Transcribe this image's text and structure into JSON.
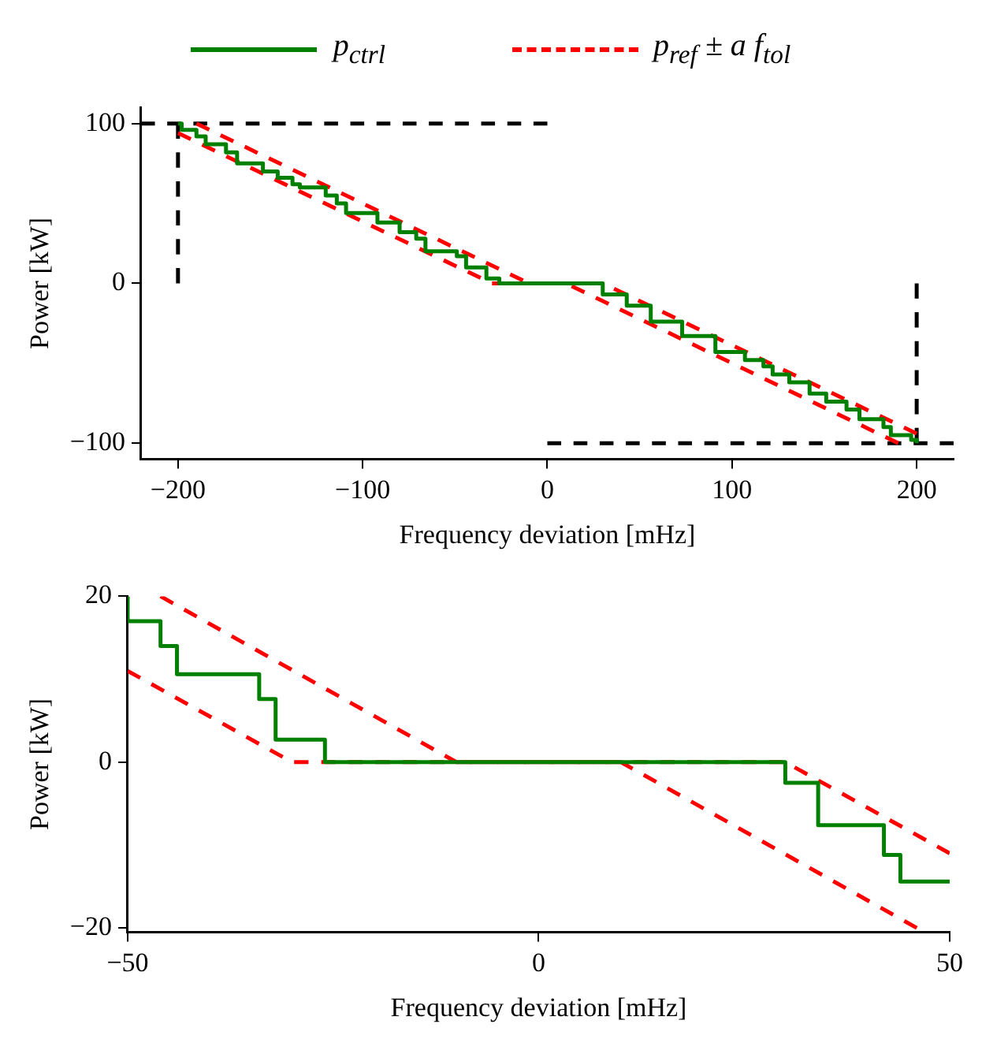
{
  "chart_data": [
    {
      "type": "line",
      "xlabel": "Frequency deviation [mHz]",
      "ylabel": "Power [kW]",
      "xlim": [
        -220,
        220
      ],
      "ylim": [
        -110,
        110
      ],
      "xticks": [
        -200,
        -100,
        0,
        100,
        200
      ],
      "yticks": [
        -100,
        0,
        100
      ],
      "grid": false,
      "legend": "top",
      "series": [
        {
          "name": "p$_{ctrl}$",
          "type": "step",
          "color": "#008000",
          "line_style": "solid",
          "x": [
            -200,
            -198,
            -190,
            -185,
            -174,
            -168,
            -154,
            -146,
            -138,
            -134,
            -120,
            -114,
            -109,
            -92,
            -80,
            -71,
            -66,
            -49,
            -44,
            -33,
            -26,
            30,
            43,
            56,
            73,
            91,
            107,
            117,
            122,
            131,
            142,
            151,
            162,
            169,
            182,
            186,
            197,
            200
          ],
          "values": [
            100,
            96,
            92,
            87,
            82,
            75,
            70,
            66,
            62,
            60,
            55,
            50,
            44,
            38,
            32,
            28,
            20,
            17,
            10,
            3,
            0,
            -7,
            -14,
            -24,
            -33,
            -43,
            -48,
            -52,
            -57,
            -62,
            -69,
            -74,
            -79,
            -85,
            -90,
            -95,
            -98,
            -100
          ]
        },
        {
          "name": "p$_{ref}$ ± a f$_{tol}$",
          "type": "line",
          "color": "#ff0000",
          "line_style": "dashed",
          "x": [
            -190,
            -10,
            30,
            200
          ],
          "values": [
            100,
            0,
            0,
            -94
          ]
        },
        {
          "type": "line",
          "color": "#ff0000",
          "line_style": "dashed",
          "x": [
            -200,
            -30,
            10,
            190
          ],
          "values": [
            94,
            0,
            0,
            -100
          ]
        },
        {
          "type": "line",
          "color": "#000000",
          "line_style": "dashed",
          "x": [
            -220,
            0
          ],
          "values": [
            100,
            100
          ]
        },
        {
          "type": "line",
          "color": "#000000",
          "line_style": "dashed",
          "x": [
            -200,
            -200
          ],
          "values": [
            100,
            0
          ]
        },
        {
          "type": "line",
          "color": "#000000",
          "line_style": "dashed",
          "x": [
            0,
            220
          ],
          "values": [
            -100,
            -100
          ]
        },
        {
          "type": "line",
          "color": "#000000",
          "line_style": "dashed",
          "x": [
            200,
            200
          ],
          "values": [
            0,
            -100
          ]
        }
      ]
    },
    {
      "type": "line",
      "xlabel": "Frequency deviation [mHz]",
      "ylabel": "Power [kW]",
      "xlim": [
        -50,
        50
      ],
      "ylim": [
        -20.5,
        20
      ],
      "xticks": [
        -50,
        0,
        50
      ],
      "yticks": [
        -20,
        0,
        20
      ],
      "grid": false,
      "series": [
        {
          "type": "step",
          "color": "#008000",
          "line_style": "solid",
          "x": [
            -50,
            -50,
            -46,
            -44,
            -34,
            -32,
            -26,
            30,
            34,
            42,
            44,
            50
          ],
          "values": [
            20,
            17,
            14,
            10.6,
            7.6,
            2.7,
            0,
            -2.5,
            -7.6,
            -11.2,
            -14.4,
            -14.4
          ]
        },
        {
          "type": "line",
          "color": "#ff0000",
          "line_style": "dashed",
          "x": [
            -46,
            -10,
            30,
            50
          ],
          "values": [
            20,
            0,
            0,
            -11
          ]
        },
        {
          "type": "line",
          "color": "#ff0000",
          "line_style": "dashed",
          "x": [
            -50,
            -30,
            10,
            46
          ],
          "values": [
            11,
            0,
            0,
            -20
          ]
        }
      ]
    }
  ]
}
